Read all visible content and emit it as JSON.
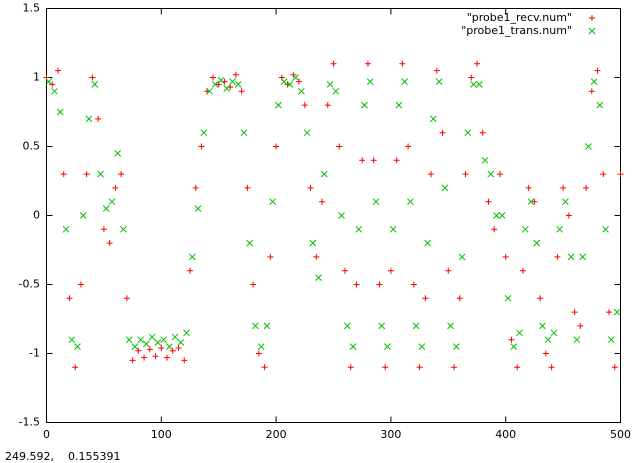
{
  "chart_data": {
    "type": "scatter",
    "xlim": [
      0,
      500
    ],
    "ylim": [
      -1.5,
      1.5
    ],
    "xticks": [
      0,
      100,
      200,
      300,
      400,
      500
    ],
    "yticks": [
      -1.5,
      -1,
      -0.5,
      0,
      0.5,
      1,
      1.5
    ],
    "legend": "top-right",
    "series": [
      {
        "name": "\"probe1_recv.num\"",
        "color": "#ff0000",
        "marker": "plus",
        "x": [
          0,
          5,
          10,
          15,
          20,
          25,
          30,
          35,
          40,
          45,
          50,
          55,
          60,
          65,
          70,
          75,
          80,
          85,
          90,
          95,
          100,
          105,
          110,
          115,
          120,
          125,
          130,
          135,
          140,
          145,
          150,
          155,
          160,
          165,
          170,
          175,
          180,
          185,
          190,
          195,
          200,
          205,
          210,
          215,
          220,
          225,
          230,
          235,
          240,
          245,
          250,
          255,
          260,
          265,
          270,
          275,
          280,
          285,
          290,
          295,
          300,
          305,
          310,
          315,
          320,
          325,
          330,
          335,
          340,
          345,
          350,
          355,
          360,
          365,
          370,
          375,
          380,
          385,
          390,
          395,
          400,
          405,
          410,
          415,
          420,
          425,
          430,
          435,
          440,
          445,
          450,
          455,
          460,
          465,
          470,
          475,
          480,
          485,
          490,
          495,
          500
        ],
        "values": [
          1.0,
          0.95,
          1.05,
          0.3,
          -0.6,
          -1.1,
          -0.5,
          0.3,
          1.0,
          0.7,
          -0.1,
          -0.2,
          0.2,
          0.3,
          -0.6,
          -1.05,
          -0.98,
          -1.03,
          -0.97,
          -1.02,
          -0.96,
          -1.03,
          -0.98,
          -0.96,
          -1.05,
          -0.4,
          0.2,
          0.5,
          0.9,
          1.0,
          0.95,
          0.97,
          0.93,
          1.02,
          0.9,
          0.2,
          -0.5,
          -1.0,
          -1.1,
          -0.3,
          0.5,
          1.0,
          0.95,
          1.02,
          0.97,
          0.8,
          0.2,
          -0.3,
          0.1,
          0.8,
          1.1,
          0.5,
          -0.4,
          -1.1,
          -0.5,
          0.4,
          1.1,
          0.4,
          -0.5,
          -1.1,
          -0.4,
          0.4,
          1.1,
          0.5,
          -0.5,
          -1.1,
          -0.6,
          0.3,
          1.05,
          0.6,
          -0.4,
          -1.1,
          -0.6,
          0.3,
          1.0,
          1.1,
          0.6,
          0.1,
          -0.1,
          0.3,
          -0.3,
          -0.9,
          -1.1,
          -0.4,
          0.2,
          0.1,
          -0.6,
          -1.0,
          -1.1,
          -0.3,
          0.2,
          0.0,
          -0.7,
          -0.8,
          0.2,
          0.9,
          1.05,
          0.3,
          -0.7,
          -1.1,
          0.3
        ]
      },
      {
        "name": "\"probe1_trans.num\"",
        "color": "#00c000",
        "marker": "cross",
        "x": [
          2,
          7,
          12,
          17,
          22,
          27,
          32,
          37,
          42,
          47,
          52,
          57,
          62,
          67,
          72,
          77,
          82,
          87,
          92,
          97,
          102,
          107,
          112,
          117,
          122,
          127,
          132,
          137,
          142,
          147,
          152,
          157,
          162,
          167,
          172,
          177,
          182,
          187,
          192,
          197,
          202,
          207,
          212,
          217,
          222,
          227,
          232,
          237,
          242,
          247,
          252,
          257,
          262,
          267,
          272,
          277,
          282,
          287,
          292,
          297,
          302,
          307,
          312,
          317,
          322,
          327,
          332,
          337,
          342,
          347,
          352,
          357,
          362,
          367,
          372,
          377,
          382,
          387,
          392,
          397,
          402,
          407,
          412,
          417,
          422,
          427,
          432,
          437,
          442,
          447,
          452,
          457,
          462,
          467,
          472,
          477,
          482,
          487,
          492,
          497
        ],
        "values": [
          0.97,
          0.9,
          0.75,
          -0.1,
          -0.9,
          -0.95,
          0.0,
          0.7,
          0.95,
          0.3,
          0.05,
          0.1,
          0.45,
          -0.1,
          -0.9,
          -0.95,
          -0.9,
          -0.93,
          -0.88,
          -0.92,
          -0.9,
          -0.95,
          -0.88,
          -0.92,
          -0.85,
          -0.3,
          0.05,
          0.6,
          0.9,
          0.95,
          0.98,
          0.92,
          0.97,
          0.95,
          0.6,
          -0.2,
          -0.8,
          -0.95,
          -0.8,
          0.1,
          0.8,
          0.97,
          0.95,
          1.0,
          0.9,
          0.6,
          -0.2,
          -0.45,
          0.3,
          0.95,
          0.9,
          0.0,
          -0.8,
          -0.95,
          -0.1,
          0.8,
          0.97,
          0.1,
          -0.8,
          -0.95,
          -0.1,
          0.8,
          0.97,
          0.1,
          -0.8,
          -0.95,
          -0.2,
          0.7,
          0.97,
          0.2,
          -0.8,
          -0.95,
          -0.3,
          0.6,
          0.95,
          0.95,
          0.4,
          0.3,
          0.0,
          0.0,
          -0.6,
          -0.95,
          -0.85,
          -0.1,
          0.1,
          -0.2,
          -0.8,
          -0.9,
          -0.85,
          -0.1,
          0.1,
          -0.3,
          -0.9,
          -0.3,
          0.5,
          0.97,
          0.8,
          -0.1,
          -0.9,
          -0.7
        ]
      }
    ],
    "status": "249.592,    0.155391"
  }
}
